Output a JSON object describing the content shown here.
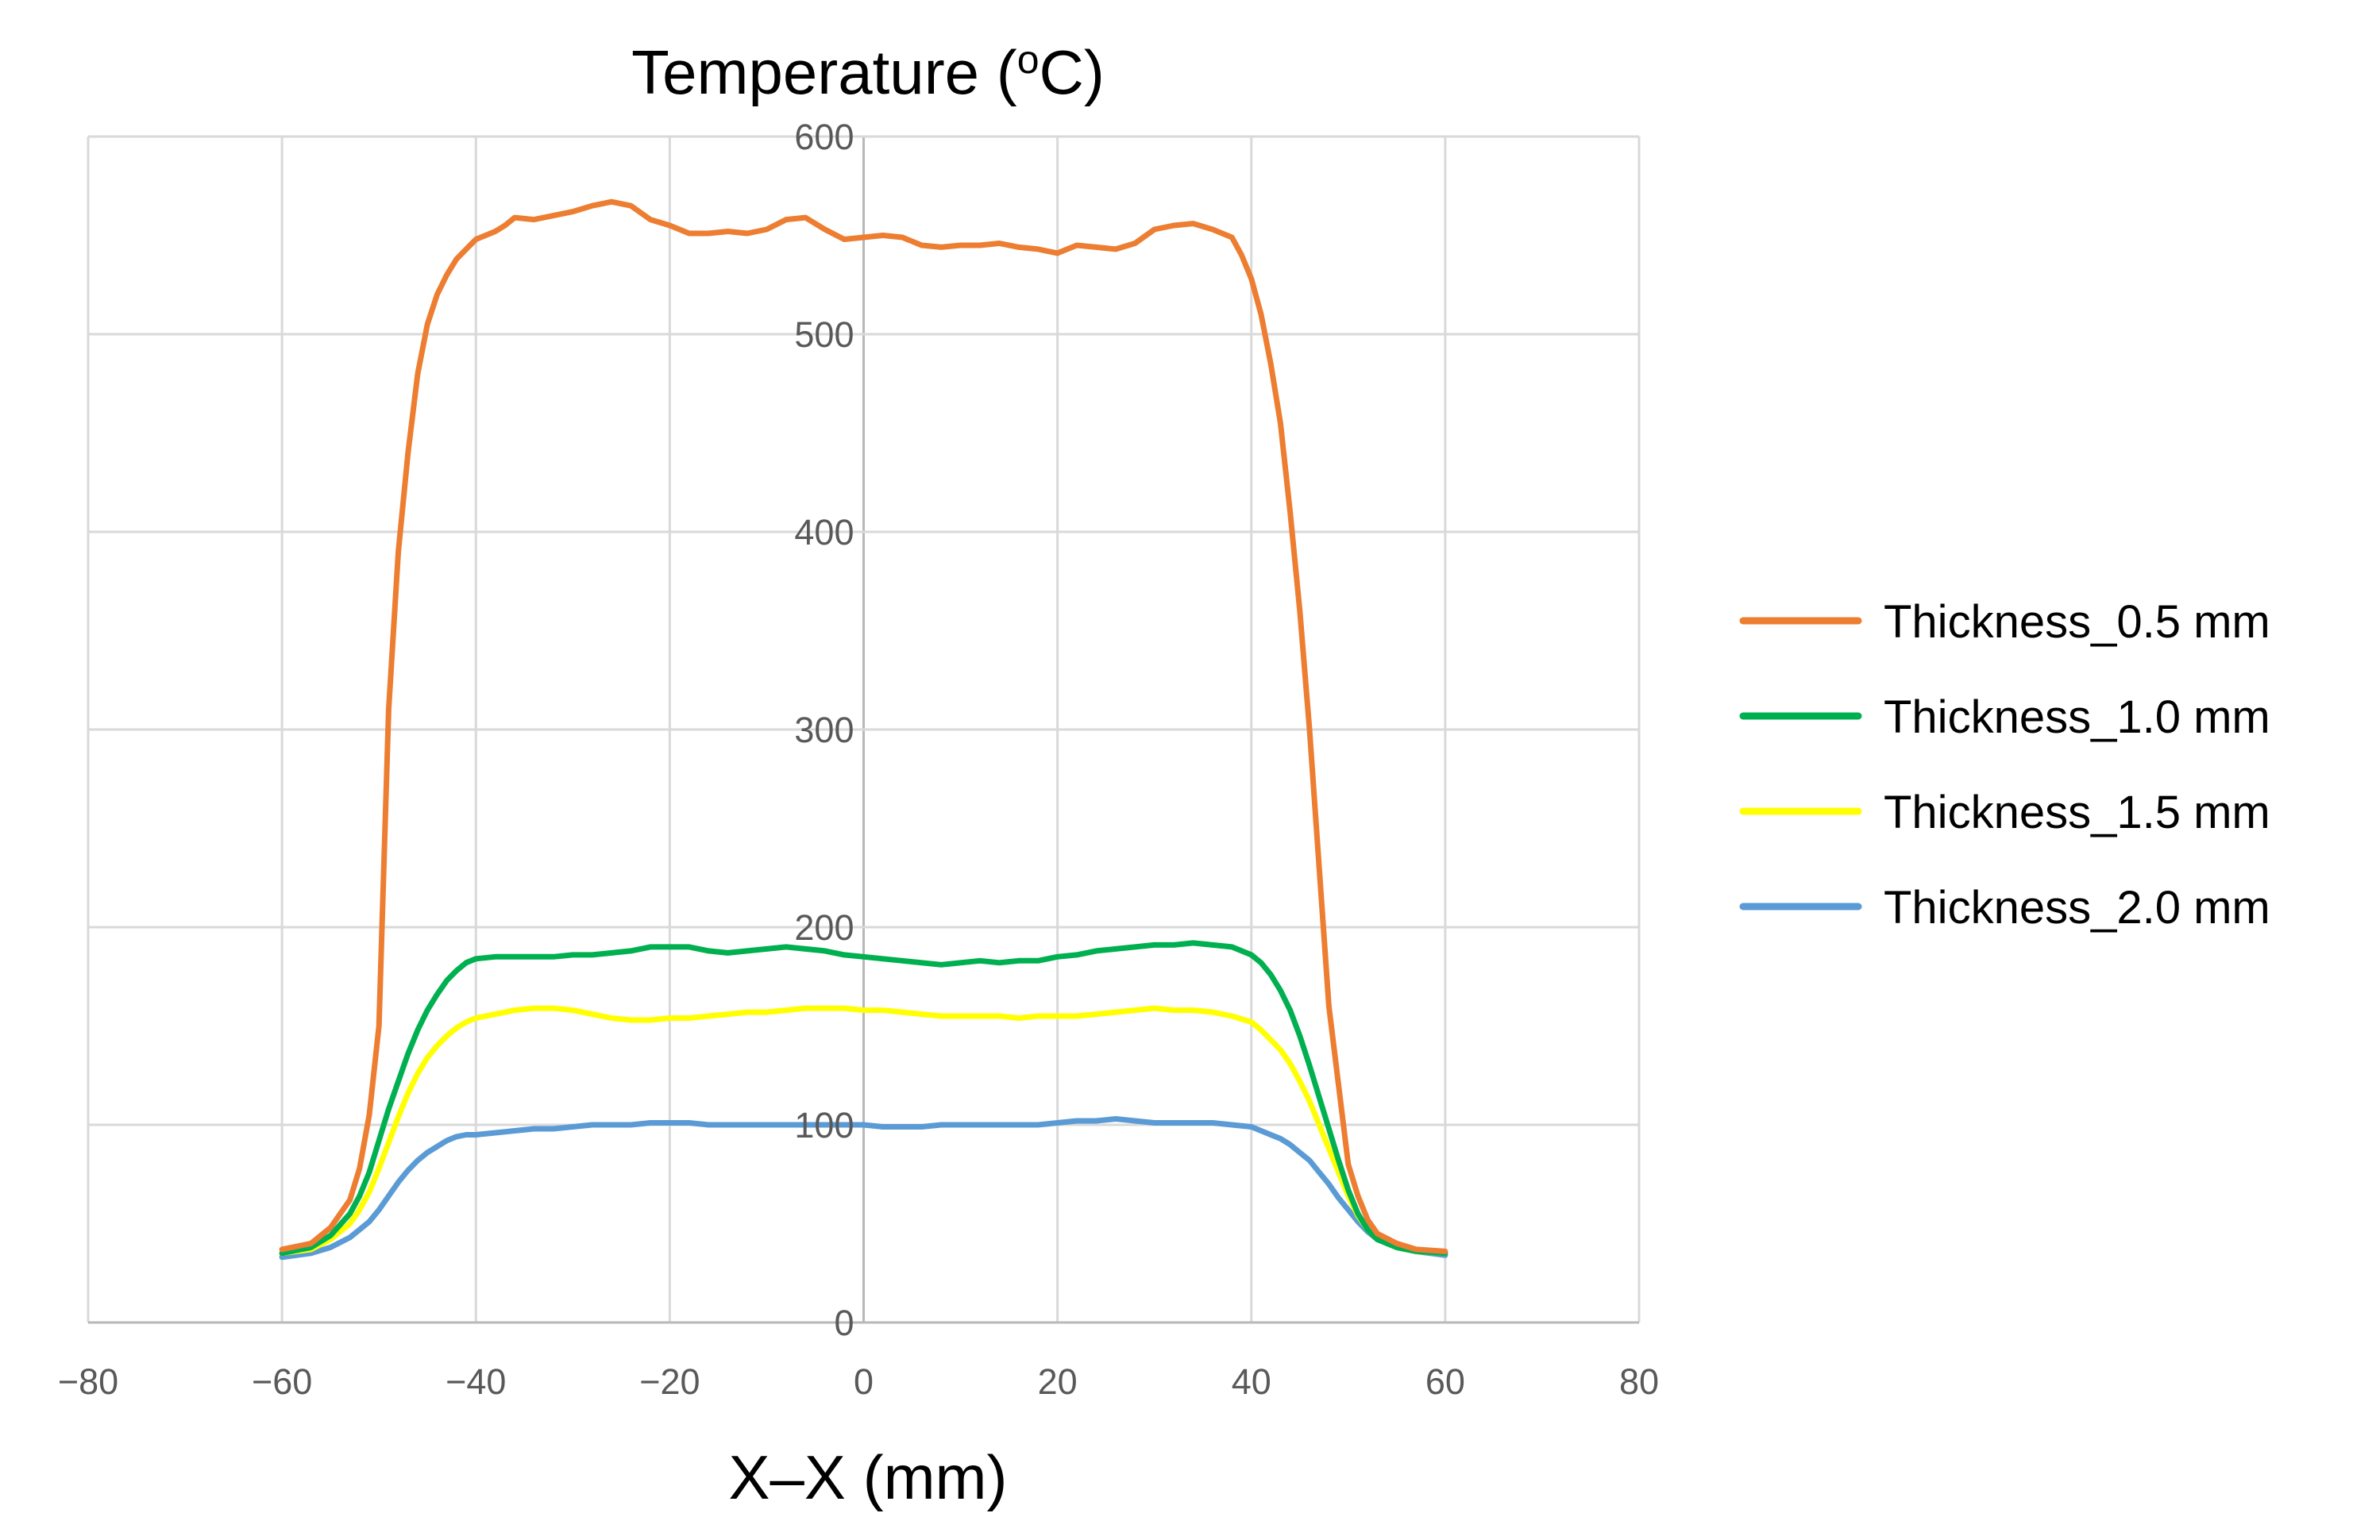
{
  "chart_data": {
    "type": "line",
    "title": "Temperature (",
    "title_sup": "o",
    "title_unit": "C)",
    "xlabel": "X–X (mm)",
    "ylabel": "Temperature (°C)",
    "xlim": [
      -80,
      80
    ],
    "ylim": [
      0,
      600
    ],
    "x_ticks": [
      -80,
      -60,
      -40,
      -20,
      0,
      20,
      40,
      60,
      80
    ],
    "x_tick_labels": [
      "−80",
      "−60",
      "−40",
      "−20",
      "0",
      "20",
      "40",
      "60",
      "80"
    ],
    "y_ticks": [
      0,
      100,
      200,
      300,
      400,
      500,
      600
    ],
    "y_tick_labels": [
      "0",
      "100",
      "200",
      "300",
      "400",
      "500",
      "600"
    ],
    "grid": true,
    "legend_position": "right",
    "series": [
      {
        "name": "Thickness_0.5 mm",
        "color": "#ED7D31",
        "x": [
          -60,
          -57,
          -55,
          -53,
          -52,
          -51,
          -50,
          -49.5,
          -49,
          -48,
          -47,
          -46,
          -45,
          -44,
          -43,
          -42,
          -41,
          -40,
          -39,
          -38,
          -37,
          -36,
          -34,
          -32,
          -30,
          -28,
          -26,
          -24,
          -22,
          -20,
          -18,
          -16,
          -14,
          -12,
          -10,
          -8,
          -6,
          -4,
          -2,
          0,
          2,
          4,
          6,
          8,
          10,
          12,
          14,
          16,
          18,
          20,
          22,
          24,
          26,
          28,
          30,
          32,
          34,
          36,
          38,
          39,
          40,
          41,
          42,
          43,
          44,
          45,
          46,
          47,
          48,
          49,
          49.5,
          50,
          51,
          52,
          53,
          55,
          57,
          60
        ],
        "values": [
          37,
          40,
          48,
          62,
          78,
          105,
          150,
          230,
          310,
          390,
          440,
          480,
          505,
          520,
          530,
          538,
          543,
          548,
          550,
          552,
          555,
          559,
          558,
          560,
          562,
          565,
          567,
          565,
          558,
          555,
          551,
          551,
          552,
          551,
          553,
          558,
          559,
          553,
          548,
          549,
          550,
          549,
          545,
          544,
          545,
          545,
          546,
          544,
          543,
          541,
          545,
          544,
          543,
          546,
          553,
          555,
          556,
          553,
          549,
          540,
          528,
          510,
          485,
          455,
          410,
          360,
          300,
          230,
          160,
          120,
          100,
          80,
          64,
          52,
          45,
          40,
          37,
          36
        ]
      },
      {
        "name": "Thickness_1.0 mm",
        "color": "#00B050",
        "x": [
          -60,
          -57,
          -55,
          -53,
          -52,
          -51,
          -50,
          -49,
          -48,
          -47,
          -46,
          -45,
          -44,
          -43,
          -42,
          -41,
          -40,
          -38,
          -36,
          -34,
          -32,
          -30,
          -28,
          -26,
          -24,
          -22,
          -20,
          -18,
          -16,
          -14,
          -12,
          -10,
          -8,
          -6,
          -4,
          -2,
          0,
          2,
          4,
          6,
          8,
          10,
          12,
          14,
          16,
          18,
          20,
          22,
          24,
          26,
          28,
          30,
          32,
          34,
          36,
          38,
          40,
          41,
          42,
          43,
          44,
          45,
          46,
          47,
          48,
          49,
          50,
          51,
          52,
          53,
          55,
          57,
          60
        ],
        "values": [
          35,
          38,
          44,
          55,
          64,
          76,
          92,
          108,
          122,
          136,
          148,
          158,
          166,
          173,
          178,
          182,
          184,
          185,
          185,
          185,
          185,
          186,
          186,
          187,
          188,
          190,
          190,
          190,
          188,
          187,
          188,
          189,
          190,
          189,
          188,
          186,
          185,
          184,
          183,
          182,
          181,
          182,
          183,
          182,
          183,
          183,
          185,
          186,
          188,
          189,
          190,
          191,
          191,
          192,
          191,
          190,
          186,
          182,
          176,
          168,
          158,
          145,
          130,
          114,
          98,
          82,
          67,
          55,
          47,
          42,
          38,
          36,
          35
        ]
      },
      {
        "name": "Thickness_1.5 mm",
        "color": "#FFFF00",
        "x": [
          -60,
          -57,
          -55,
          -53,
          -52,
          -51,
          -50,
          -49,
          -48,
          -47,
          -46,
          -45,
          -44,
          -43,
          -42,
          -41,
          -40,
          -38,
          -36,
          -34,
          -32,
          -30,
          -28,
          -26,
          -24,
          -22,
          -20,
          -18,
          -16,
          -14,
          -12,
          -10,
          -8,
          -6,
          -4,
          -2,
          0,
          2,
          4,
          6,
          8,
          10,
          12,
          14,
          16,
          18,
          20,
          22,
          24,
          26,
          28,
          30,
          32,
          34,
          36,
          38,
          40,
          41,
          42,
          43,
          44,
          45,
          46,
          47,
          48,
          49,
          50,
          51,
          52,
          53,
          55,
          57,
          60
        ],
        "values": [
          35,
          37,
          42,
          50,
          57,
          66,
          78,
          91,
          104,
          116,
          126,
          134,
          140,
          145,
          149,
          152,
          154,
          156,
          158,
          159,
          159,
          158,
          156,
          154,
          153,
          153,
          154,
          154,
          155,
          156,
          157,
          157,
          158,
          159,
          159,
          159,
          158,
          158,
          157,
          156,
          155,
          155,
          155,
          155,
          154,
          155,
          155,
          155,
          156,
          157,
          158,
          159,
          158,
          158,
          157,
          155,
          152,
          148,
          143,
          138,
          131,
          122,
          112,
          100,
          88,
          76,
          64,
          54,
          47,
          42,
          38,
          36,
          35
        ]
      },
      {
        "name": "Thickness_2.0 mm",
        "color": "#5B9BD5",
        "x": [
          -60,
          -57,
          -55,
          -53,
          -52,
          -51,
          -50,
          -49,
          -48,
          -47,
          -46,
          -45,
          -44,
          -43,
          -42,
          -41,
          -40,
          -38,
          -36,
          -34,
          -32,
          -30,
          -28,
          -26,
          -24,
          -22,
          -20,
          -18,
          -16,
          -14,
          -12,
          -10,
          -8,
          -6,
          -4,
          -2,
          0,
          2,
          4,
          6,
          8,
          10,
          12,
          14,
          16,
          18,
          20,
          22,
          24,
          26,
          28,
          30,
          32,
          34,
          36,
          38,
          40,
          41,
          42,
          43,
          44,
          45,
          46,
          47,
          48,
          49,
          50,
          51,
          52,
          53,
          55,
          57,
          60
        ],
        "values": [
          33,
          35,
          38,
          43,
          47,
          51,
          57,
          64,
          71,
          77,
          82,
          86,
          89,
          92,
          94,
          95,
          95,
          96,
          97,
          98,
          98,
          99,
          100,
          100,
          100,
          101,
          101,
          101,
          100,
          100,
          100,
          100,
          100,
          100,
          100,
          100,
          100,
          99,
          99,
          99,
          100,
          100,
          100,
          100,
          100,
          100,
          101,
          102,
          102,
          103,
          102,
          101,
          101,
          101,
          101,
          100,
          99,
          97,
          95,
          93,
          90,
          86,
          82,
          76,
          70,
          63,
          57,
          51,
          46,
          42,
          38,
          36,
          34
        ]
      }
    ]
  }
}
